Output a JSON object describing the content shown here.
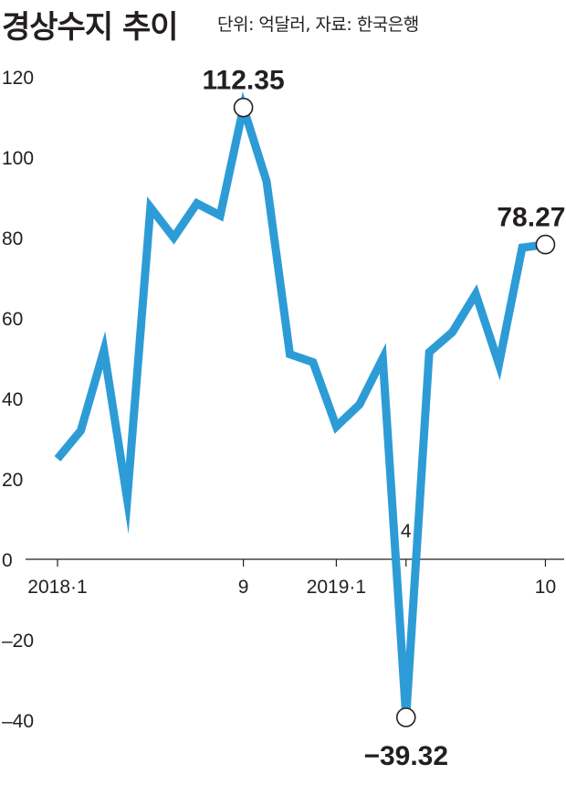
{
  "header": {
    "title": "경상수지 추이",
    "subtitle": "단위: 억달러, 자료: 한국은행"
  },
  "colors": {
    "line": "#2d9cd6",
    "axis": "#231f20",
    "marker_fill": "#ffffff"
  },
  "chart_data": {
    "type": "line",
    "title": "경상수지 추이",
    "subtitle": "단위: 억달러, 자료: 한국은행",
    "ylim": [
      -40,
      120
    ],
    "yticks": [
      120,
      100,
      80,
      60,
      40,
      20,
      0,
      -20,
      -40
    ],
    "ytick_labels": [
      "120",
      "100",
      "80",
      "60",
      "40",
      "20",
      "0",
      "–20",
      "–40"
    ],
    "x": [
      "2018-01",
      "2018-02",
      "2018-03",
      "2018-04",
      "2018-05",
      "2018-06",
      "2018-07",
      "2018-08",
      "2018-09",
      "2018-10",
      "2018-11",
      "2018-12",
      "2019-01",
      "2019-02",
      "2019-03",
      "2019-04",
      "2019-05",
      "2019-06",
      "2019-07",
      "2019-08",
      "2019-09",
      "2019-10"
    ],
    "xtick_labels": [
      {
        "index": 0,
        "label": "2018·1"
      },
      {
        "index": 8,
        "label": "9"
      },
      {
        "index": 12,
        "label": "2019·1"
      },
      {
        "index": 15,
        "label": "4"
      },
      {
        "index": 21,
        "label": "10"
      }
    ],
    "series": [
      {
        "values": [
          25.0,
          32.0,
          52.0,
          15.0,
          87.5,
          80.0,
          88.5,
          85.5,
          112.35,
          94.0,
          51.0,
          49.0,
          33.0,
          38.5,
          50.0,
          -39.32,
          51.5,
          56.5,
          66.0,
          48.5,
          77.5,
          78.27
        ]
      }
    ],
    "annotations": [
      {
        "index": 8,
        "label": "112.35"
      },
      {
        "index": 15,
        "label": "−39.32"
      },
      {
        "index": 21,
        "label": "78.27"
      }
    ],
    "grid": false
  }
}
